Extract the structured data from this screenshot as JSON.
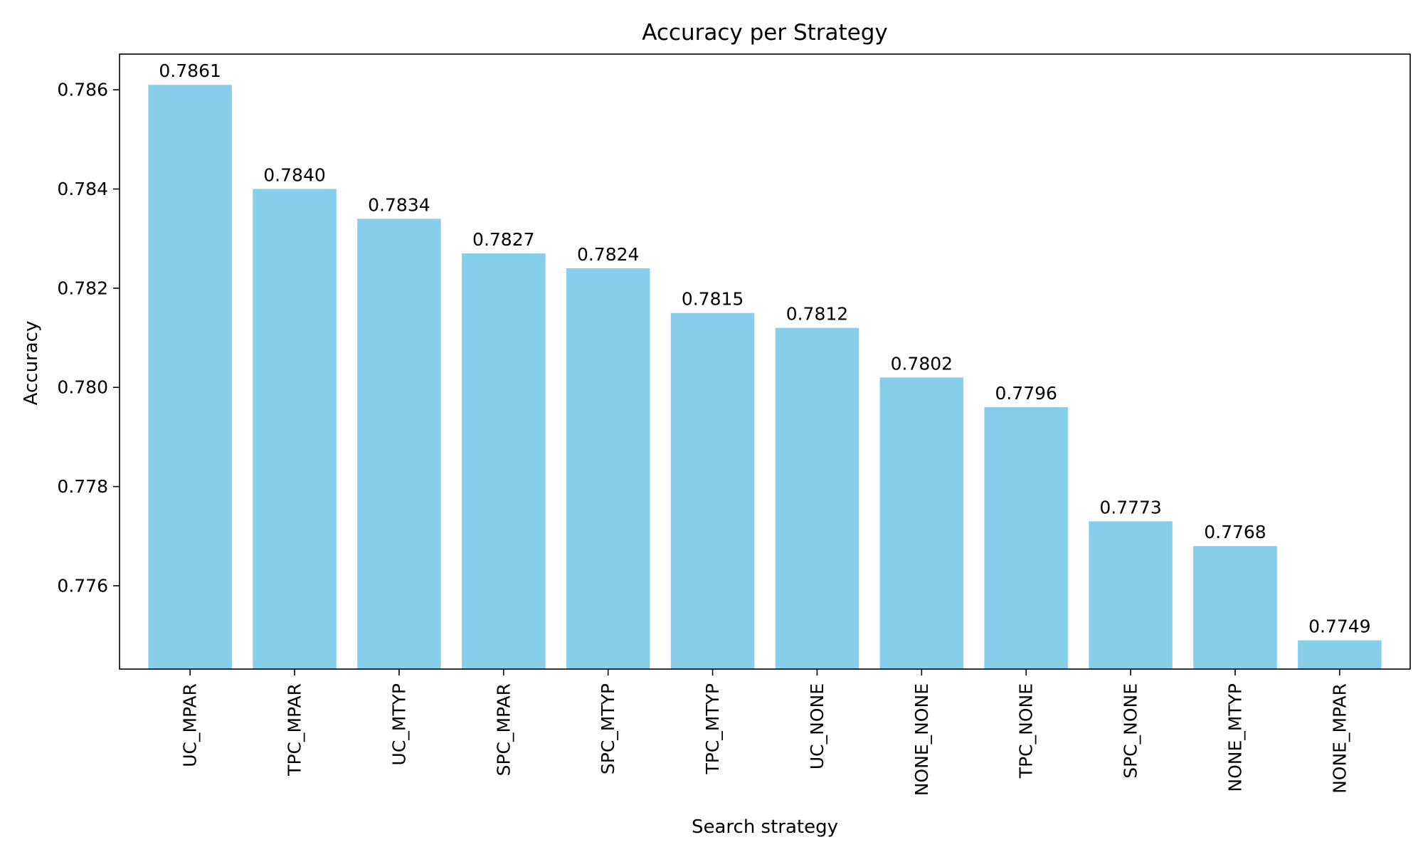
{
  "chart_data": {
    "type": "bar",
    "title": "Accuracy per Strategy",
    "xlabel": "Search strategy",
    "ylabel": "Accuracy",
    "categories": [
      "UC_MPAR",
      "TPC_MPAR",
      "UC_MTYP",
      "SPC_MPAR",
      "SPC_MTYP",
      "TPC_MTYP",
      "UC_NONE",
      "NONE_NONE",
      "TPC_NONE",
      "SPC_NONE",
      "NONE_MTYP",
      "NONE_MPAR"
    ],
    "values": [
      0.7861,
      0.784,
      0.7834,
      0.7827,
      0.7824,
      0.7815,
      0.7812,
      0.7802,
      0.7796,
      0.7773,
      0.7768,
      0.7749
    ],
    "data_labels": [
      "0.7861",
      "0.7840",
      "0.7834",
      "0.7827",
      "0.7824",
      "0.7815",
      "0.7812",
      "0.7802",
      "0.7796",
      "0.7773",
      "0.7768",
      "0.7749"
    ],
    "ylim": [
      0.77432,
      0.78672
    ],
    "yticks": [
      0.776,
      0.778,
      0.78,
      0.782,
      0.784,
      0.786
    ],
    "ytick_labels": [
      "0.776",
      "0.778",
      "0.780",
      "0.782",
      "0.784",
      "0.786"
    ],
    "bar_color": "#87ceeb",
    "grid": false,
    "legend": "none"
  }
}
